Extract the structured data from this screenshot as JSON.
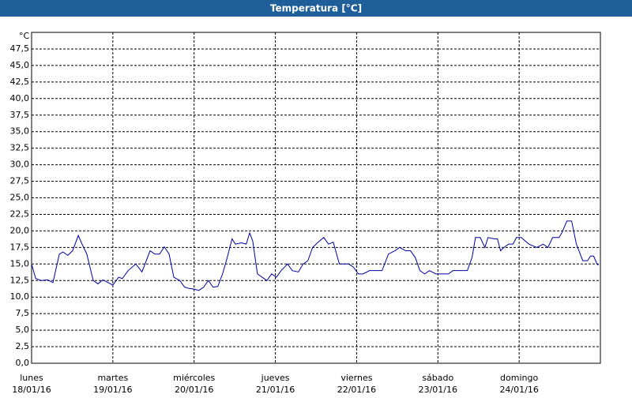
{
  "chart_data": {
    "type": "line",
    "title": "Temperatura [°C]",
    "y_unit": "°C",
    "xlim": [
      0,
      168
    ],
    "xticks": [
      {
        "value": 0,
        "label": "lunes"
      },
      {
        "value": 24,
        "label": "martes"
      },
      {
        "value": 48,
        "label": "miércoles"
      },
      {
        "value": 72,
        "label": "jueves"
      },
      {
        "value": 96,
        "label": "viernes"
      },
      {
        "value": 120,
        "label": "sábado"
      },
      {
        "value": 144,
        "label": "domingo"
      }
    ],
    "xtick_dates": [
      "18/01/16",
      "19/01/16",
      "20/01/16",
      "21/01/16",
      "22/01/16",
      "23/01/16",
      "24/01/16"
    ],
    "ylim": [
      0,
      50
    ],
    "yticks": [
      {
        "value": 0,
        "label": "0,0"
      },
      {
        "value": 2.5,
        "label": "2,5"
      },
      {
        "value": 5,
        "label": "5,0"
      },
      {
        "value": 7.5,
        "label": "7,5"
      },
      {
        "value": 10,
        "label": "10,0"
      },
      {
        "value": 12.5,
        "label": "12,5"
      },
      {
        "value": 15,
        "label": "15,0"
      },
      {
        "value": 17.5,
        "label": "17,5"
      },
      {
        "value": 20,
        "label": "20,0"
      },
      {
        "value": 22.5,
        "label": "22,5"
      },
      {
        "value": 25,
        "label": "25,0"
      },
      {
        "value": 27.5,
        "label": "27,5"
      },
      {
        "value": 30,
        "label": "30,0"
      },
      {
        "value": 32.5,
        "label": "32,5"
      },
      {
        "value": 35,
        "label": "35,0"
      },
      {
        "value": 37.5,
        "label": "37,5"
      },
      {
        "value": 40,
        "label": "40,0"
      },
      {
        "value": 42.5,
        "label": "42,5"
      },
      {
        "value": 45,
        "label": "45,0"
      },
      {
        "value": 47.5,
        "label": "47,5"
      }
    ],
    "grid": true,
    "series": [
      {
        "color": "#0000a0",
        "x": [
          0,
          1.2,
          2.8,
          4.7,
          6.3,
          8.2,
          9.3,
          10.7,
          12.1,
          13.8,
          14.9,
          16.3,
          18.2,
          19.6,
          21,
          22.6,
          24,
          25.7,
          26.8,
          28.5,
          30.8,
          32.6,
          35,
          36.4,
          37.8,
          39.2,
          40.6,
          42,
          43.8,
          45.2,
          46.6,
          48,
          49.4,
          50.8,
          52.2,
          53.6,
          55,
          56.4,
          57.8,
          59.2,
          60.2,
          62,
          63.4,
          64.4,
          65.3,
          66.7,
          68.1,
          69.5,
          70.9,
          72.3,
          73.7,
          75.6,
          77,
          78.8,
          80.2,
          81.6,
          83,
          84.4,
          86.3,
          87.7,
          89.1,
          90.9,
          92.3,
          93.7,
          95.1,
          96.5,
          97.9,
          99.8,
          101.7,
          103.5,
          105.4,
          107.3,
          108.7,
          110.5,
          111.9,
          113.3,
          114.7,
          116.1,
          117.5,
          119.4,
          121.3,
          123.1,
          124.5,
          126.9,
          128.7,
          130.1,
          131.1,
          132.5,
          133.9,
          134.8,
          136.7,
          137.6,
          138.5,
          139.5,
          140.9,
          142.2,
          143.2,
          144.6,
          146.9,
          149.2,
          151.1,
          152.5,
          153.9,
          155.8,
          156.7,
          158.1,
          159.5,
          160.9,
          162.8,
          164.2,
          165.1,
          166,
          167,
          167.4
        ],
        "values": [
          15,
          12.8,
          12.5,
          12.6,
          12.2,
          16.5,
          16.8,
          16.3,
          17,
          19.3,
          18,
          16.5,
          12.5,
          12,
          12.6,
          12.2,
          11.8,
          13,
          12.8,
          14,
          15,
          13.8,
          17,
          16.5,
          16.5,
          17.6,
          16.5,
          13,
          12.5,
          11.5,
          11.3,
          11.2,
          11,
          11.5,
          12.5,
          11.5,
          11.6,
          13.5,
          16,
          18.8,
          18,
          18.2,
          18,
          19.7,
          18.5,
          13.5,
          13,
          12.5,
          13.5,
          13,
          14,
          15,
          14,
          13.8,
          15,
          15.5,
          17.5,
          18.2,
          19,
          18,
          18.3,
          15,
          15,
          15,
          14.5,
          13.5,
          13.5,
          14,
          14,
          14,
          16.5,
          17,
          17.5,
          17,
          17,
          16,
          14,
          13.5,
          14,
          13.5,
          13.5,
          13.5,
          14,
          14,
          14,
          16,
          19,
          19,
          17.5,
          19,
          18.8,
          18.8,
          17,
          17.5,
          18,
          18,
          19,
          19,
          18,
          17.5,
          18,
          17.5,
          19,
          19,
          19.8,
          21.5,
          21.5,
          18,
          15.5,
          15.5,
          16.2,
          16.2,
          15,
          14.8
        ]
      }
    ]
  }
}
